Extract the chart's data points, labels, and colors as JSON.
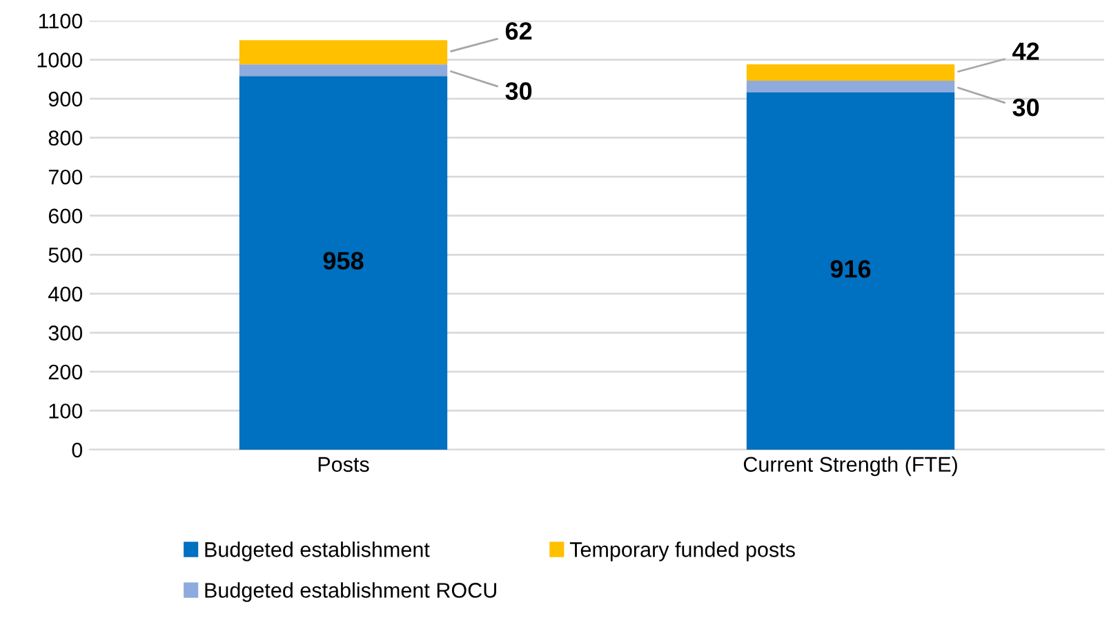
{
  "chart_data": {
    "type": "bar",
    "stacked": true,
    "categories": [
      "Posts",
      "Current Strength (FTE)"
    ],
    "series": [
      {
        "name": "Budgeted establishment",
        "color": "#0070c0",
        "values": [
          958,
          916
        ]
      },
      {
        "name": "Budgeted establishment ROCU",
        "color": "#8faadc",
        "values": [
          30,
          30
        ]
      },
      {
        "name": "Temporary funded posts",
        "color": "#ffc000",
        "values": [
          62,
          42
        ]
      }
    ],
    "ylim": [
      0,
      1100
    ],
    "yticks": [
      0,
      100,
      200,
      300,
      400,
      500,
      600,
      700,
      800,
      900,
      1000,
      1100
    ],
    "grid": "y",
    "legend": "bottom",
    "data_labels": true
  }
}
